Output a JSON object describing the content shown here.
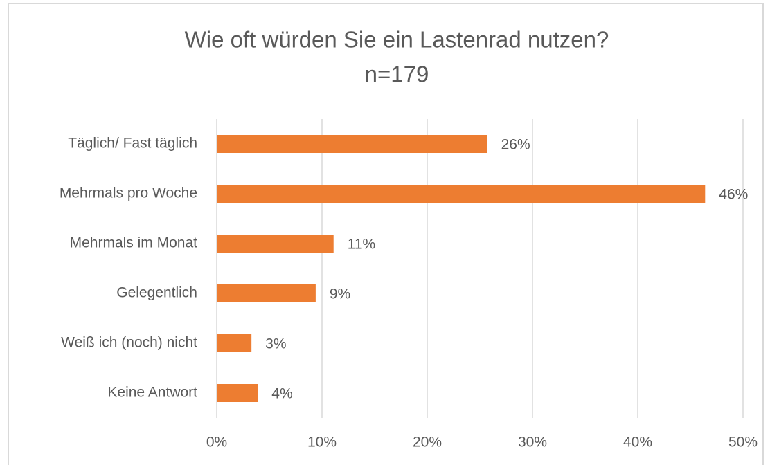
{
  "chart_data": {
    "type": "bar",
    "orientation": "horizontal",
    "title": "Wie oft würden Sie ein Lastenrad nutzen?",
    "subtitle": "n=179",
    "categories": [
      "Täglich/ Fast täglich",
      "Mehrmals pro Woche",
      "Mehrmals im Monat",
      "Gelegentlich",
      "Weiß ich (noch) nicht",
      "Keine Antwort"
    ],
    "values": [
      25.7,
      46.4,
      11.1,
      9.4,
      3.3,
      3.9
    ],
    "value_labels": [
      "26%",
      "46%",
      "11%",
      "9%",
      "3%",
      "4%"
    ],
    "color": "#ed7d31",
    "xlim": [
      0,
      50
    ],
    "xticks": [
      {
        "value": 0,
        "label": "0%"
      },
      {
        "value": 10,
        "label": "10%"
      },
      {
        "value": 20,
        "label": "20%"
      },
      {
        "value": 30,
        "label": "30%"
      },
      {
        "value": 40,
        "label": "40%"
      },
      {
        "value": 50,
        "label": "50%"
      }
    ],
    "grid": true
  }
}
